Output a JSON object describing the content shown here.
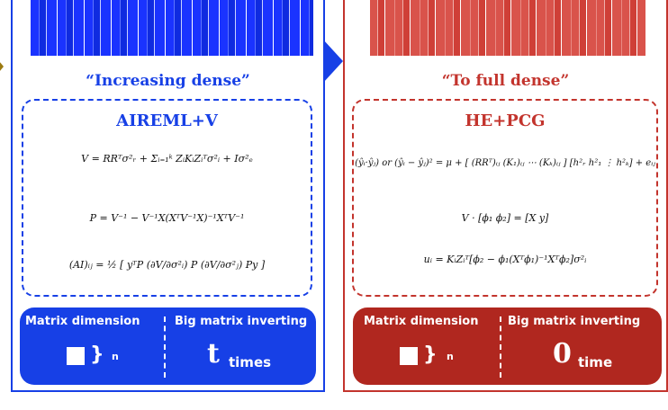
{
  "left_panel": {
    "subtitle": "“Increasing dense”",
    "method": "AIREML+V",
    "equations": [
      "V = RRᵀσ²ᵣ + Σᵢ₌₁ᵏ ZᵢKᵢZᵢᵀσ²ᵢ + Iσ²ₑ",
      "P = V⁻¹ − V⁻¹X(XᵀV⁻¹X)⁻¹XᵀV⁻¹",
      "(AI)ᵢⱼ = ½ [ yᵀP (∂V/∂σ²ᵢ) P (∂V/∂σ²ⱼ) Py ]"
    ],
    "bar": {
      "col1_header": "Matrix dimension",
      "col2_header": "Big matrix inverting",
      "dim_symbol": "n",
      "count": "t",
      "count_unit": "times"
    }
  },
  "right_panel": {
    "subtitle": "“To full dense”",
    "method": "HE+PCG",
    "equations": [
      "(ŷᵢ·ŷⱼ) or (ŷᵢ − ŷⱼ)² = μ + [ (RRᵀ)ᵢⱼ (K₁)ᵢⱼ ⋯ (Kₖ)ᵢⱼ ] [h²ᵣ h²₁ ⋮ h²ₖ] + eᵢⱼ",
      "V · [ϕ₁  ϕ₂] = [X  y]",
      "uᵢ = KᵢZᵢᵀ[ϕ₂ − ϕ₁(Xᵀϕ₁)⁻¹Xᵀϕ₂]σ²ᵢ"
    ],
    "bar": {
      "col1_header": "Matrix dimension",
      "col2_header": "Big matrix inverting",
      "dim_symbol": "n",
      "count": "0",
      "count_unit": "time"
    }
  },
  "colors": {
    "blue": "#1740e6",
    "red": "#c3342d",
    "gold": "#9c7a10"
  }
}
